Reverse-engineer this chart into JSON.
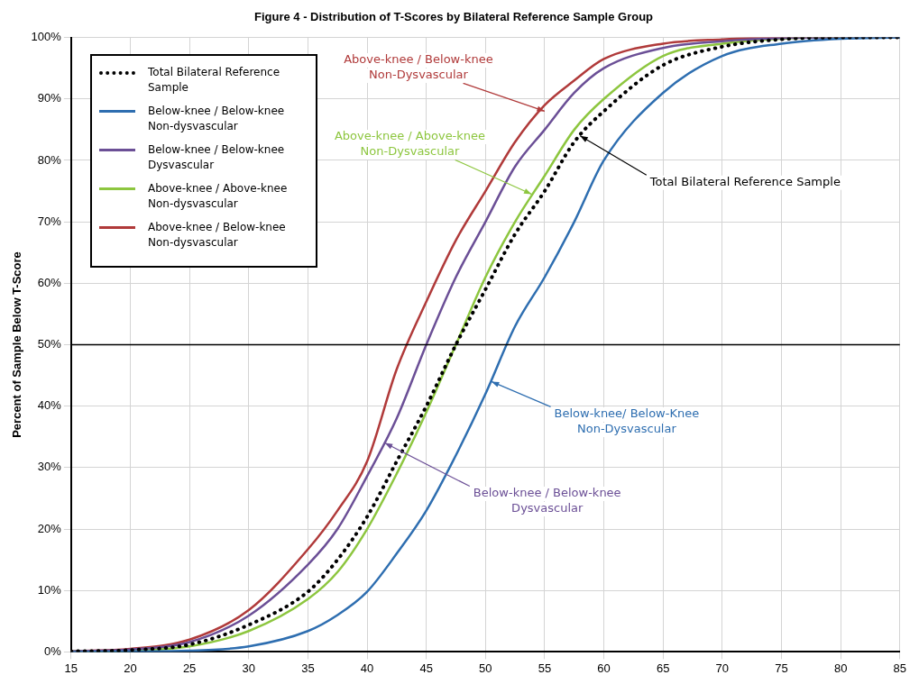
{
  "chart_data": {
    "type": "line",
    "title": "Figure 4 - Distribution of T-Scores by Bilateral Reference Sample Group",
    "ylabel": "Percent of Sample Below T-Score",
    "x": [
      15,
      20,
      25,
      30,
      35,
      37.5,
      40,
      42.5,
      45,
      47.5,
      50,
      52.5,
      55,
      57.5,
      60,
      65,
      70,
      75,
      80,
      85
    ],
    "series": [
      {
        "name": "Total Bilateral Reference Sample",
        "color": "#000000",
        "line_style": "dotted",
        "values": [
          0.1,
          0.3,
          1.2,
          4.4,
          9.8,
          15,
          22,
          31,
          40,
          50,
          59,
          68,
          75,
          83,
          88,
          95.5,
          98.5,
          99.7,
          100,
          100
        ]
      },
      {
        "name": "Below-knee / Below-knee Non-dysvascular",
        "color": "#2e6eb0",
        "values": [
          0,
          0.1,
          0.2,
          0.9,
          3.4,
          6,
          9.8,
          16,
          23,
          32,
          42,
          53,
          61,
          70,
          80,
          91,
          97,
          99,
          99.8,
          100
        ]
      },
      {
        "name": "Below-knee / Below-knee Dysvascular",
        "color": "#6b4f96",
        "values": [
          0.1,
          0.4,
          1.6,
          5.9,
          14.2,
          20,
          28.6,
          38,
          50,
          61,
          70,
          79,
          85,
          91,
          95,
          98.3,
          99.4,
          99.9,
          100,
          100
        ]
      },
      {
        "name": "Above-knee / Above-knee Non-dysvascular",
        "color": "#8dc63f",
        "values": [
          0.1,
          0.2,
          0.9,
          3.4,
          8.6,
          13,
          20,
          29,
          39,
          50,
          61,
          70,
          77.5,
          85,
          90,
          97,
          99,
          99.8,
          100,
          100
        ]
      },
      {
        "name": "Above-knee / Below-knee Non-dysvascular",
        "color": "#b03a3a",
        "values": [
          0.1,
          0.5,
          2,
          6.8,
          16.7,
          23,
          31,
          46,
          57,
          67,
          75,
          83,
          89,
          93,
          96.5,
          99,
          99.7,
          100,
          100,
          100
        ]
      }
    ],
    "xlim": [
      15,
      85
    ],
    "xticks": [
      15,
      20,
      25,
      30,
      35,
      40,
      45,
      50,
      55,
      60,
      65,
      70,
      75,
      80,
      85
    ],
    "ylim": [
      0,
      100
    ],
    "yticks": [
      {
        "value": 0,
        "label": "0%"
      },
      {
        "value": 10,
        "label": "10%"
      },
      {
        "value": 20,
        "label": "20%"
      },
      {
        "value": 30,
        "label": "30%"
      },
      {
        "value": 40,
        "label": "40%"
      },
      {
        "value": 50,
        "label": "50%"
      },
      {
        "value": 60,
        "label": "60%"
      },
      {
        "value": 70,
        "label": "70%"
      },
      {
        "value": 80,
        "label": "80%"
      },
      {
        "value": 90,
        "label": "90%"
      },
      {
        "value": 100,
        "label": "100%"
      }
    ],
    "ref_lines": [
      {
        "axis": "y",
        "value": 50,
        "color": "#000000"
      }
    ],
    "annotations": [
      {
        "text": "Above-knee / Below-knee\nNon-Dysvascular",
        "x": 55,
        "y": 88
      },
      {
        "text": "Above-knee / Above-knee\nNon-Dysvascular",
        "x": 53.9,
        "y": 74.5
      },
      {
        "text": "Total Bilateral Reference Sample",
        "x": 58,
        "y": 84
      },
      {
        "text": "Below-knee/ Below-Knee\nNon-Dysvascular",
        "x": 50.5,
        "y": 44
      },
      {
        "text": "Below-knee / Below-knee\nDysvascular",
        "x": 41.5,
        "y": 34
      }
    ],
    "grid": true,
    "legend": "top left",
    "marker": "none"
  }
}
